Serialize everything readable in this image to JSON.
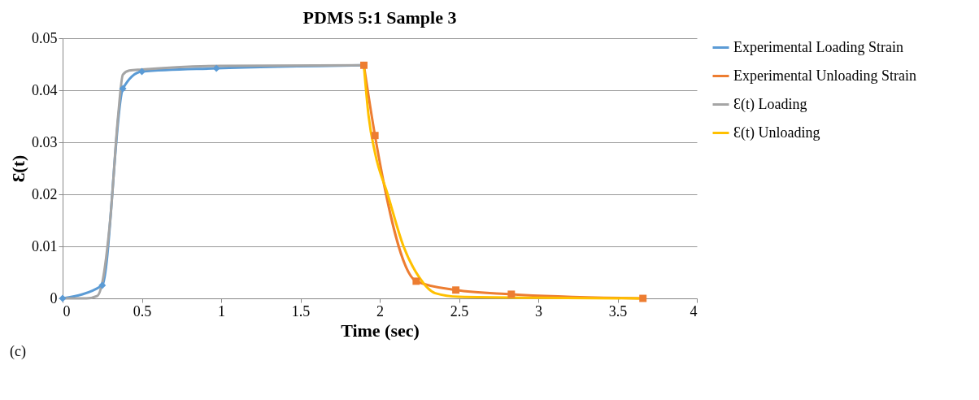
{
  "chart_data": {
    "type": "line",
    "title": "PDMS 5:1 Sample 3",
    "xlabel": "Time (sec)",
    "ylabel": "Ɛ(t)",
    "annotations": [
      "(c)"
    ],
    "xlim": [
      0,
      4
    ],
    "xticks": [
      0,
      0.5,
      1,
      1.5,
      2,
      2.5,
      3,
      3.5,
      4
    ],
    "ylim": [
      0,
      0.05
    ],
    "yticks": [
      0,
      0.01,
      0.02,
      0.03,
      0.04,
      0.05
    ],
    "grid": "y",
    "legend": "right",
    "series": [
      {
        "name": "Experimental Loading Strain",
        "color": "#5b9bd5",
        "marker": "diamond",
        "x": [
          0,
          0.25,
          0.38,
          0.5,
          0.97,
          1.9
        ],
        "values": [
          0,
          0.0025,
          0.0403,
          0.0436,
          0.0442,
          0.0448
        ]
      },
      {
        "name": "Experimental Unloading Strain",
        "color": "#ed7d31",
        "marker": "square",
        "x": [
          1.9,
          1.97,
          2.23,
          2.48,
          2.83,
          3.66
        ],
        "values": [
          0.0448,
          0.0313,
          0.0033,
          0.0016,
          0.0008,
          0
        ]
      },
      {
        "name": "Ɛ(t) Loading",
        "color": "#a5a5a5",
        "marker": "none",
        "x": [
          0,
          0.15,
          0.22,
          0.25,
          0.3,
          0.35,
          0.38,
          0.42,
          0.5,
          1,
          1.9
        ],
        "values": [
          0,
          0,
          0.0005,
          0.003,
          0.015,
          0.035,
          0.043,
          0.0438,
          0.044,
          0.0447,
          0.0448
        ]
      },
      {
        "name": "Ɛ(t) Unloading",
        "color": "#ffc000",
        "marker": "none",
        "x": [
          1.9,
          1.93,
          1.97,
          2.05,
          2.15,
          2.25,
          2.35,
          2.5,
          3,
          3.66
        ],
        "values": [
          0.0448,
          0.035,
          0.028,
          0.02,
          0.01,
          0.004,
          0.001,
          0.0003,
          0.0001,
          0
        ]
      }
    ]
  }
}
